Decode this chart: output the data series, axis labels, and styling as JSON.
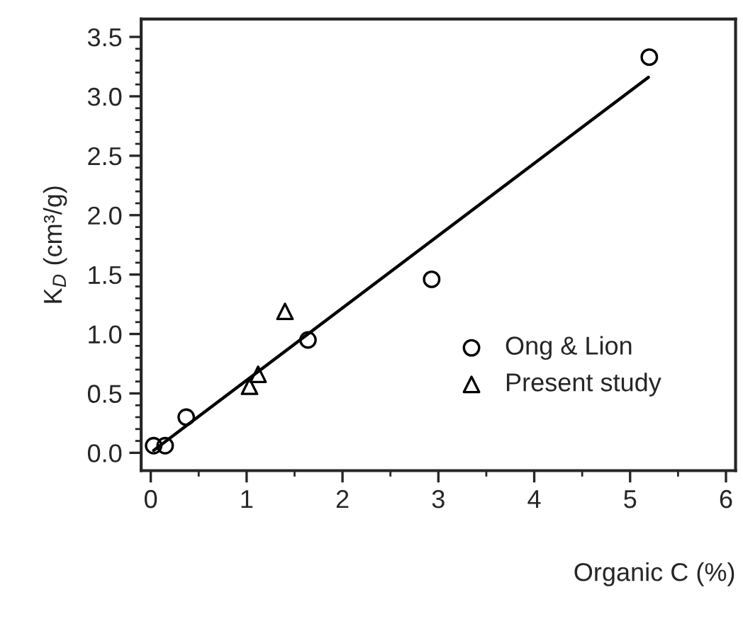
{
  "chart_data": {
    "type": "scatter",
    "xlabel": "Organic C (%)",
    "ylabel": "K$_{D}$ (cm³/g)",
    "series": [
      {
        "name": "Ong & Lion",
        "color": "#000000",
        "marker": "circle",
        "x": [
          0.03,
          0.15,
          0.37,
          1.64,
          2.93,
          5.2
        ],
        "values": [
          0.06,
          0.06,
          0.3,
          0.95,
          1.46,
          3.33
        ]
      },
      {
        "name": "Present study",
        "color": "#000000",
        "marker": "triangle",
        "x": [
          1.03,
          1.12,
          1.4
        ],
        "values": [
          0.56,
          0.66,
          1.19
        ]
      },
      {
        "type": "line",
        "color": "#000000",
        "marker": "none",
        "x": [
          0.03,
          5.19
        ],
        "values": [
          0.02,
          3.16
        ]
      }
    ],
    "xlim": [
      -0.1,
      6.1
    ],
    "ylim": [
      -0.15,
      3.65
    ],
    "xticks": [
      0,
      1,
      2,
      3,
      4,
      5,
      6
    ],
    "yticks": [
      {
        "value": 0,
        "label": "0.0"
      },
      {
        "value": 0.5,
        "label": "0.5"
      },
      {
        "value": 1,
        "label": "1.0"
      },
      {
        "value": 1.5,
        "label": "1.5"
      },
      {
        "value": 2,
        "label": "2.0"
      },
      {
        "value": 2.5,
        "label": "2.5"
      },
      {
        "value": 3,
        "label": "3.0"
      },
      {
        "value": 3.5,
        "label": "3.5"
      }
    ],
    "grid": false,
    "legend": "bottom right"
  }
}
